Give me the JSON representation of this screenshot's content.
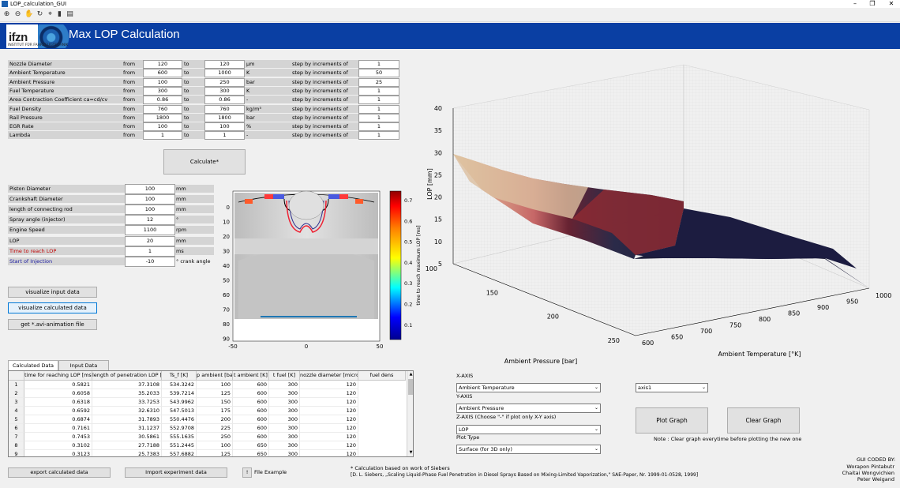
{
  "window": {
    "title": "LOP_calculation_GUI",
    "min": "–",
    "max": "❐",
    "close": "✕"
  },
  "header": {
    "logo_text": "ifzn",
    "logo_sub": "INSTITUT FÜR FAHRZEUGTECHNIK",
    "title": "Max LOP Calculation"
  },
  "params": [
    {
      "label": "Nozzle Diameter",
      "from_label": "from",
      "from": "120",
      "to_label": "to",
      "to": "120",
      "unit": "µm",
      "step_label": "step by increments of",
      "step": "1"
    },
    {
      "label": "Ambient Temperature",
      "from_label": "from",
      "from": "600",
      "to_label": "to",
      "to": "1000",
      "unit": "K",
      "step_label": "step by increments of",
      "step": "50"
    },
    {
      "label": "Ambient Pressure",
      "from_label": "from",
      "from": "100",
      "to_label": "to",
      "to": "250",
      "unit": "bar",
      "step_label": "step by increments of",
      "step": "25"
    },
    {
      "label": "Fuel Temperature",
      "from_label": "from",
      "from": "300",
      "to_label": "to",
      "to": "300",
      "unit": "K",
      "step_label": "step by increments of",
      "step": "1"
    },
    {
      "label": "Area Contraction Coefficient ca=cd/cv",
      "from_label": "from",
      "from": "0.86",
      "to_label": "to",
      "to": "0.86",
      "unit": "-",
      "step_label": "step by increments of",
      "step": "1"
    },
    {
      "label": "Fuel Density",
      "from_label": "from",
      "from": "760",
      "to_label": "to",
      "to": "760",
      "unit": "kg/m³",
      "step_label": "step by increments of",
      "step": "1"
    },
    {
      "label": "Rail Pressure",
      "from_label": "from",
      "from": "1800",
      "to_label": "to",
      "to": "1800",
      "unit": "bar",
      "step_label": "step by increments of",
      "step": "1"
    },
    {
      "label": "EGR Rate",
      "from_label": "from",
      "from": "100",
      "to_label": "to",
      "to": "100",
      "unit": "%",
      "step_label": "step by increments of",
      "step": "1"
    },
    {
      "label": "Lambda",
      "from_label": "from",
      "from": "1",
      "to_label": "to",
      "to": "1",
      "unit": "-",
      "step_label": "step by increments of",
      "step": "1"
    }
  ],
  "calculate_label": "Calculate*",
  "engine": [
    {
      "label": "Piston Diameter",
      "value": "100",
      "unit": "mm",
      "style": ""
    },
    {
      "label": "Crankshaft Diameter",
      "value": "100",
      "unit": "mm",
      "style": ""
    },
    {
      "label": "length of connecting rod",
      "value": "100",
      "unit": "mm",
      "style": ""
    },
    {
      "label": "Spray angle (injector)",
      "value": "12",
      "unit": "°",
      "style": ""
    },
    {
      "label": "Engine Speed",
      "value": "1100",
      "unit": "rpm",
      "style": ""
    },
    {
      "label": "LOP",
      "value": "20",
      "unit": "mm",
      "style": ""
    },
    {
      "label": "Time to reach LOP",
      "value": "1",
      "unit": "ms",
      "style": "red"
    },
    {
      "label": "Start of Injection",
      "value": "-10",
      "unit": "° crank angle",
      "style": "blue"
    }
  ],
  "buttons": {
    "visualize_input": "visualize input data",
    "visualize_calc": "visualize calculated data",
    "get_avi": "get *.avi-animation file",
    "export": "export calculated data",
    "import": "Import experiment data",
    "file_example_btn": "!",
    "file_example": "File Example",
    "plot": "Plot Graph",
    "clear": "Clear Graph"
  },
  "engine_plot": {
    "y_ticks": [
      "0",
      "10",
      "20",
      "30",
      "40",
      "50",
      "60",
      "70",
      "80",
      "90"
    ],
    "x_ticks": [
      "-50",
      "0",
      "50"
    ],
    "colorbar_ticks": [
      "0.7",
      "0.6",
      "0.5",
      "0.4",
      "0.3",
      "0.2",
      "0.1"
    ],
    "colorbar_label": "time to reach maximum LOP [ms]"
  },
  "chart_data": {
    "type": "surface",
    "zlabel": "LOP [mm]",
    "xlabel": "Ambient Temperature [°K]",
    "ylabel": "Ambient Pressure [bar]",
    "z_ticks": [
      "5",
      "10",
      "15",
      "20",
      "25",
      "30",
      "35",
      "40"
    ],
    "x_ticks": [
      "600",
      "650",
      "700",
      "750",
      "800",
      "850",
      "900",
      "950",
      "1000"
    ],
    "y_ticks": [
      "100",
      "150",
      "200",
      "250"
    ],
    "zlim": [
      5,
      40
    ]
  },
  "tabs": [
    "Calculated Data",
    "Input Data"
  ],
  "table": {
    "columns": [
      "time for reaching LOP [ms]",
      "length of penetration LOP [mm]",
      "Ts_f [K]",
      "p ambient [bar]",
      "t ambient [K]",
      "t fuel [K]",
      "nozzle diameter [micro]",
      "fuel dens"
    ],
    "rows": [
      [
        "1",
        "0.5821",
        "37.3108",
        "534.3242",
        "100",
        "600",
        "300",
        "120"
      ],
      [
        "2",
        "0.6058",
        "35.2033",
        "539.7214",
        "125",
        "600",
        "300",
        "120"
      ],
      [
        "3",
        "0.6318",
        "33.7253",
        "543.9962",
        "150",
        "600",
        "300",
        "120"
      ],
      [
        "4",
        "0.6592",
        "32.6310",
        "547.5013",
        "175",
        "600",
        "300",
        "120"
      ],
      [
        "5",
        "0.6874",
        "31.7893",
        "550.4476",
        "200",
        "600",
        "300",
        "120"
      ],
      [
        "6",
        "0.7161",
        "31.1237",
        "552.9708",
        "225",
        "600",
        "300",
        "120"
      ],
      [
        "7",
        "0.7453",
        "30.5861",
        "555.1635",
        "250",
        "600",
        "300",
        "120"
      ],
      [
        "8",
        "0.3102",
        "27.7188",
        "551.2445",
        "100",
        "650",
        "300",
        "120"
      ],
      [
        "9",
        "0.3123",
        "25.7383",
        "557.6882",
        "125",
        "650",
        "300",
        "120"
      ]
    ]
  },
  "axes_panel": {
    "xaxis_label": "X-AXIS",
    "xaxis_value": "Ambient Temperature",
    "yaxis_label": "Y-AXIS",
    "yaxis_value": "Ambient Pressure",
    "zaxis_label": "Z-AXIS  (Choose \"-\" if plot only X-Y axis)",
    "zaxis_value": "LOP",
    "plottype_label": "Plot Type",
    "plottype_value": "Surface (for 3D only)",
    "axis_select": "axis1",
    "note": "Note : Clear graph everytime before plotting the new one"
  },
  "footer": {
    "calc_note": "* Calculation based on work of Siebers",
    "ref": "[D. L. Siebers, „Scaling Liquid-Phase Fuel Penetration in Diesel Sprays Based on Mixing-Limited Vaporization,\" SAE-Paper, Nr. 1999-01-0528, 1999]",
    "credit_title": "GUI CODED BY:",
    "credit_1": "Worapon Pintabutr",
    "credit_2": "Chaitai Wongvichien",
    "credit_3": "Peter Weigand"
  }
}
